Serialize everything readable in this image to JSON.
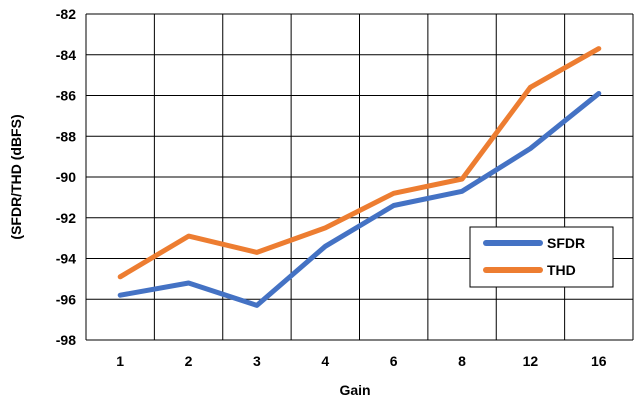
{
  "chart_data": {
    "type": "line",
    "title": "",
    "xlabel": "Gain",
    "ylabel": "(SFDR/THD (dBFS)",
    "categories": [
      "1",
      "2",
      "3",
      "4",
      "6",
      "8",
      "12",
      "16"
    ],
    "ylim": [
      -98,
      -82
    ],
    "yticks": [
      -82,
      -84,
      -86,
      -88,
      -90,
      -92,
      -94,
      -96,
      -98
    ],
    "grid": true,
    "legend_position": "right-middle",
    "series": [
      {
        "name": "SFDR",
        "color": "#4472C4",
        "values": [
          -95.8,
          -95.2,
          -96.3,
          -93.4,
          -91.4,
          -90.7,
          -88.6,
          -85.9
        ]
      },
      {
        "name": "THD",
        "color": "#ED7D31",
        "values": [
          -94.9,
          -92.9,
          -93.7,
          -92.5,
          -90.8,
          -90.1,
          -85.6,
          -83.7
        ]
      }
    ]
  }
}
